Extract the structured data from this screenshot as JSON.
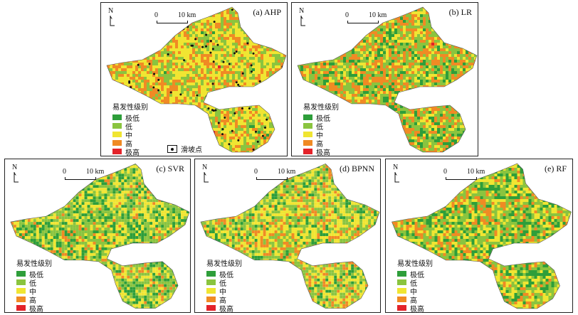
{
  "legend": {
    "title": "易发性级别",
    "classes": [
      {
        "label": "极低",
        "color": "#2e9e3a"
      },
      {
        "label": "低",
        "color": "#8ac43f"
      },
      {
        "label": "中",
        "color": "#f0e532"
      },
      {
        "label": "高",
        "color": "#f08a24"
      },
      {
        "label": "极高",
        "color": "#e3232a"
      }
    ]
  },
  "north_label": "N",
  "scale": {
    "zero": "0",
    "end": "10 km"
  },
  "landslide_label": "滑坡点",
  "panels": [
    {
      "id": "ahp",
      "title": "(a) AHP",
      "weights": [
        0.12,
        0.22,
        0.3,
        0.26,
        0.1
      ],
      "has_points": true
    },
    {
      "id": "lr",
      "title": "(b) LR",
      "weights": [
        0.26,
        0.24,
        0.14,
        0.26,
        0.1
      ],
      "has_points": false
    },
    {
      "id": "svr",
      "title": "(c) SVR",
      "weights": [
        0.3,
        0.26,
        0.22,
        0.16,
        0.06
      ],
      "has_points": false
    },
    {
      "id": "bpnn",
      "title": "(d) BPNN",
      "weights": [
        0.22,
        0.26,
        0.26,
        0.18,
        0.08
      ],
      "has_points": false
    },
    {
      "id": "rf",
      "title": "(e) RF",
      "weights": [
        0.3,
        0.24,
        0.18,
        0.2,
        0.08
      ],
      "has_points": false
    }
  ]
}
